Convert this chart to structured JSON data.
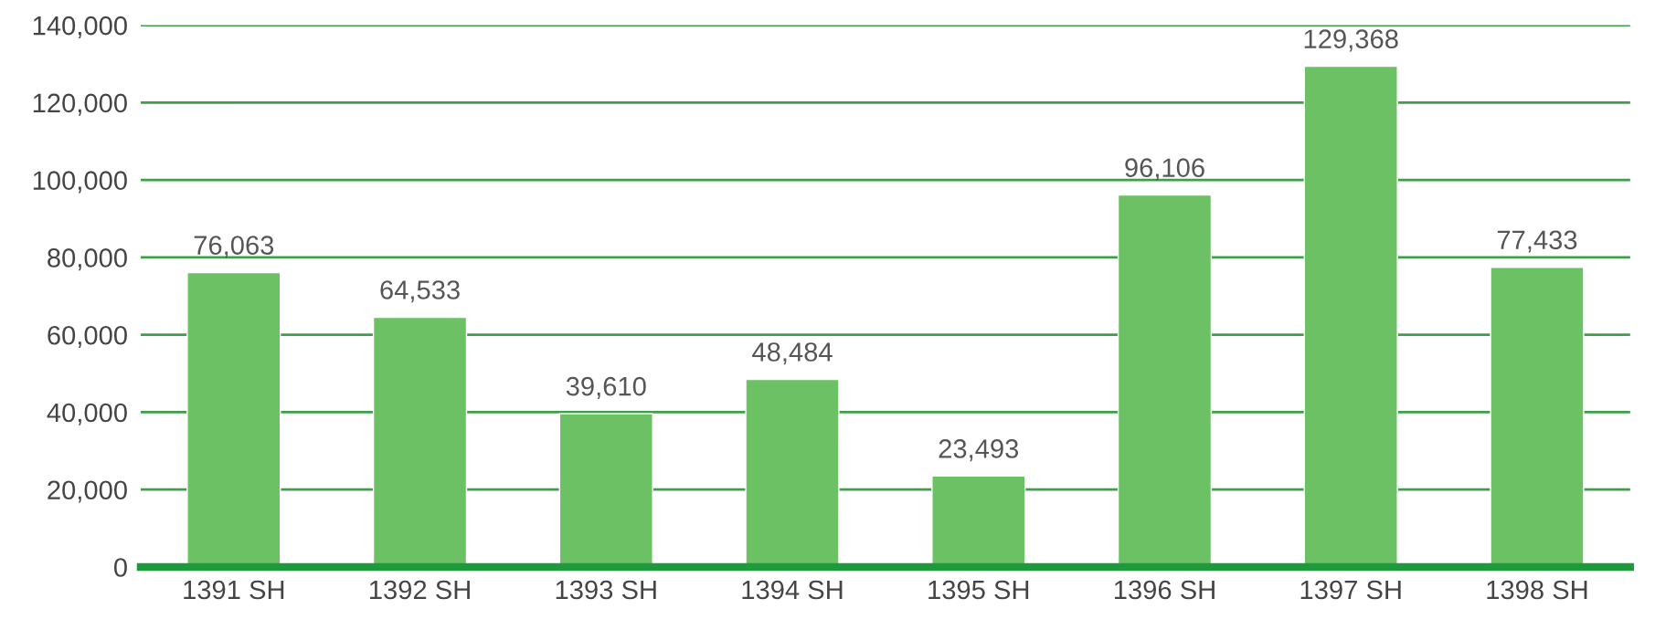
{
  "chart_data": {
    "type": "bar",
    "categories": [
      "1391 SH",
      "1392 SH",
      "1393 SH",
      "1394 SH",
      "1395 SH",
      "1396 SH",
      "1397 SH",
      "1398 SH"
    ],
    "values": [
      76063,
      64533,
      39610,
      48484,
      23493,
      96106,
      129368,
      77433
    ],
    "value_labels": [
      "76,063",
      "64,533",
      "39,610",
      "48,484",
      "23,493",
      "96,106",
      "129,368",
      "77,433"
    ],
    "color": "#6cc164",
    "ylim": [
      0,
      140000
    ],
    "yticks": [
      {
        "value": 0,
        "label": "0"
      },
      {
        "value": 20000,
        "label": "20,000"
      },
      {
        "value": 40000,
        "label": "40,000"
      },
      {
        "value": 60000,
        "label": "60,000"
      },
      {
        "value": 80000,
        "label": "80,000"
      },
      {
        "value": 100000,
        "label": "100,000"
      },
      {
        "value": 120000,
        "label": "120,000"
      },
      {
        "value": 140000,
        "label": "140,000"
      }
    ],
    "grid": "y"
  }
}
